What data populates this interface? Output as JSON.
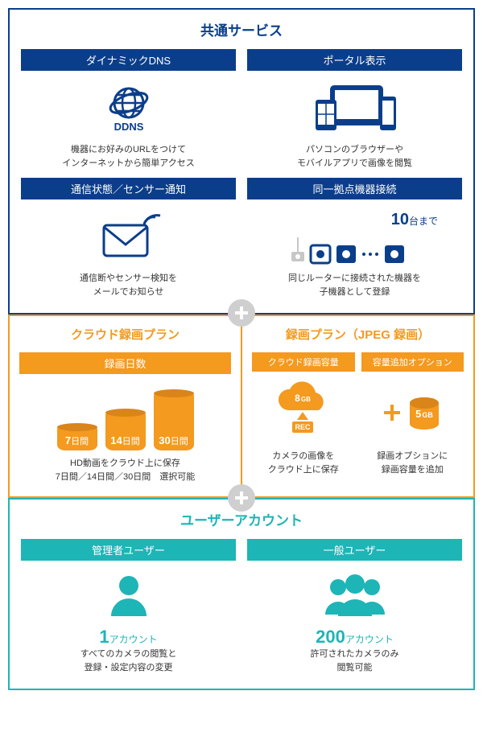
{
  "colors": {
    "navy": "#0b3e8a",
    "orange": "#f39a1f",
    "teal": "#1eb5b6",
    "plusBg": "#cfcfcf",
    "plusFg": "#ffffff"
  },
  "common": {
    "title": "共通サービス",
    "cards": {
      "ddns": {
        "bar": "ダイナミックDNS",
        "label": "DDNS",
        "desc1": "機器にお好みのURLをつけて",
        "desc2": "インターネットから簡単アクセス"
      },
      "portal": {
        "bar": "ポータル表示",
        "desc1": "パソコンのブラウザーや",
        "desc2": "モバイルアプリで画像を閲覧"
      },
      "notify": {
        "bar": "通信状態／センサー通知",
        "desc1": "通信断やセンサー検知を",
        "desc2": "メールでお知らせ"
      },
      "same": {
        "bar": "同一拠点機器接続",
        "count": "10",
        "unit": "台まで",
        "desc1": "同じルーターに接続された機器を",
        "desc2": "子機器として登録"
      }
    }
  },
  "cloud": {
    "title": "クラウド録画プラン",
    "bar": "録画日数",
    "days": [
      "7",
      "14",
      "30"
    ],
    "dayUnit": "日間",
    "heights": [
      30,
      48,
      72
    ],
    "desc1": "HD動画をクラウド上に保存",
    "desc2": "7日間／14日間／30日間　選択可能"
  },
  "jpeg": {
    "title": "録画プラン（JPEG 録画）",
    "capBar": "クラウド録画容量",
    "capValue": "8",
    "capUnit": "GB",
    "rec": "REC",
    "capDesc1": "カメラの画像を",
    "capDesc2": "クラウド上に保存",
    "addBar": "容量追加オプション",
    "addValue": "5",
    "addUnit": "GB",
    "addDesc1": "録画オプションに",
    "addDesc2": "録画容量を追加"
  },
  "user": {
    "title": "ユーザーアカウント",
    "admin": {
      "bar": "管理者ユーザー",
      "num": "1",
      "unit": "アカウント",
      "desc1": "すべてのカメラの閲覧と",
      "desc2": "登録・設定内容の変更"
    },
    "gen": {
      "bar": "一般ユーザー",
      "num": "200",
      "unit": "アカウント",
      "desc1": "許可されたカメラのみ",
      "desc2": "閲覧可能"
    }
  }
}
